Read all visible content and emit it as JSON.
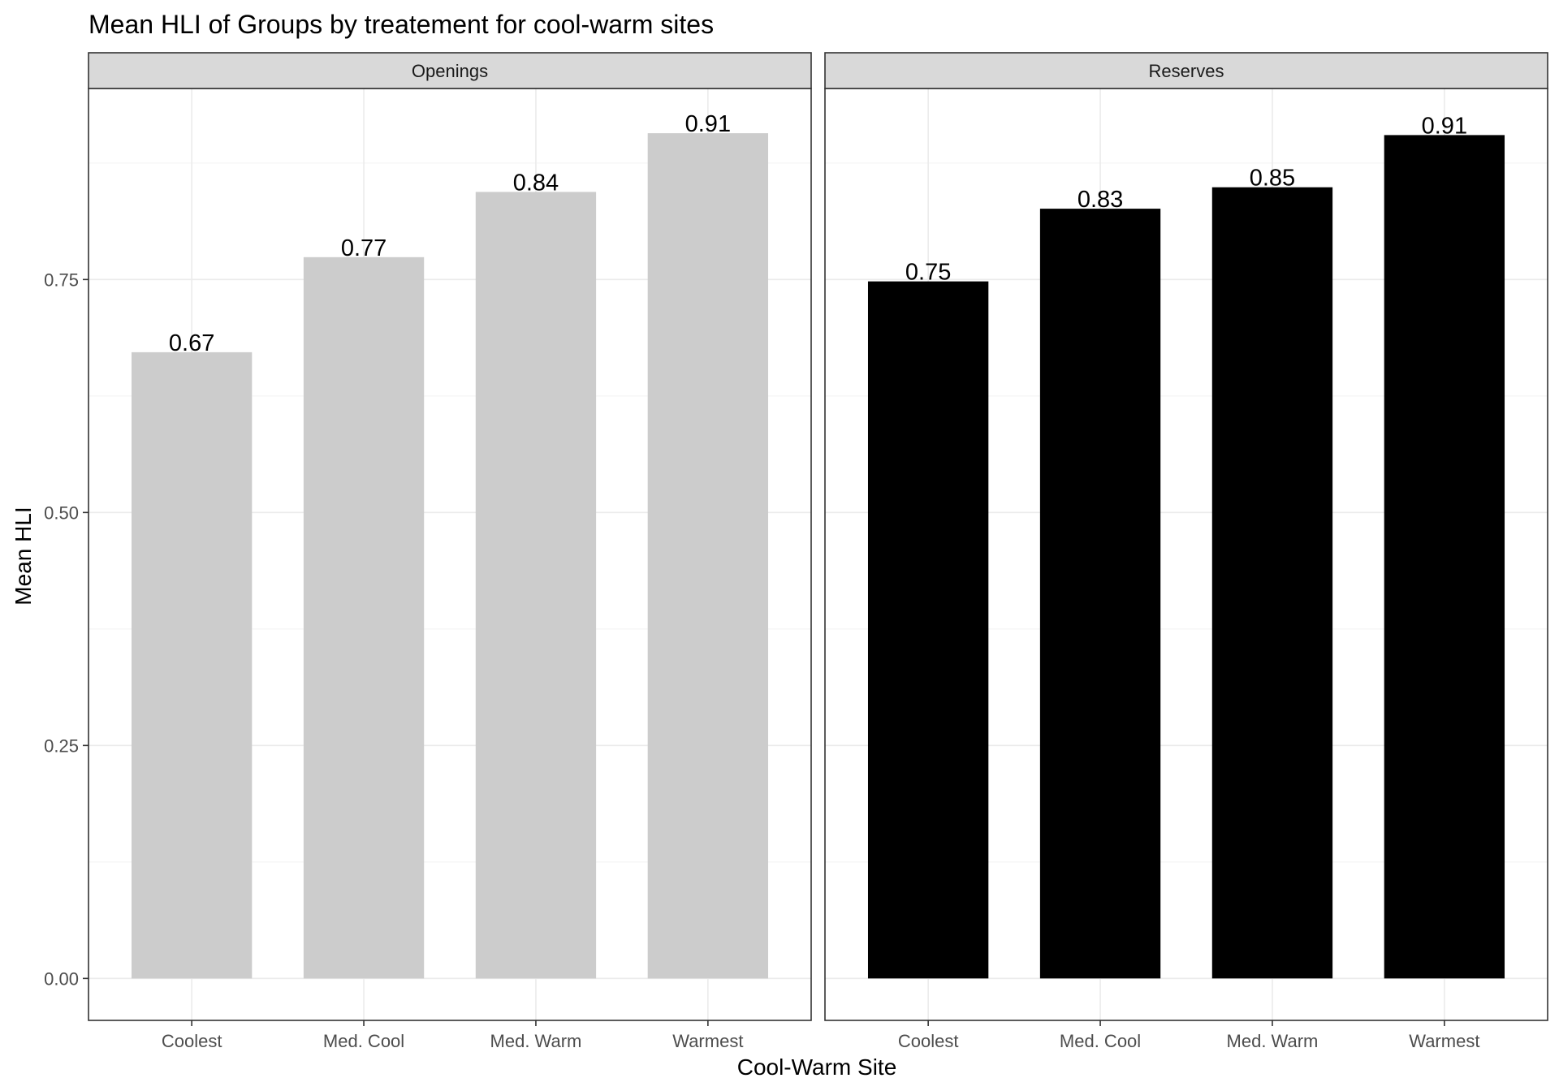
{
  "chart_data": {
    "type": "bar",
    "title": "Mean HLI of Groups by treatement for cool-warm sites",
    "xlabel": "Cool-Warm Site",
    "ylabel": "Mean HLI",
    "categories": [
      "Coolest",
      "Med. Cool",
      "Med. Warm",
      "Warmest"
    ],
    "ylim": [
      -0.045,
      0.955
    ],
    "yticks": [
      0.0,
      0.25,
      0.5,
      0.75
    ],
    "ytick_labels": [
      "0.00",
      "0.25",
      "0.50",
      "0.75"
    ],
    "grid": true,
    "legend": "none",
    "facets": [
      {
        "name": "Openings",
        "color": "#cccccc",
        "values": [
          0.672,
          0.774,
          0.844,
          0.907
        ],
        "labels": [
          "0.67",
          "0.77",
          "0.84",
          "0.91"
        ]
      },
      {
        "name": "Reserves",
        "color": "#000000",
        "values": [
          0.748,
          0.826,
          0.849,
          0.905
        ],
        "labels": [
          "0.75",
          "0.83",
          "0.85",
          "0.91"
        ]
      }
    ]
  }
}
